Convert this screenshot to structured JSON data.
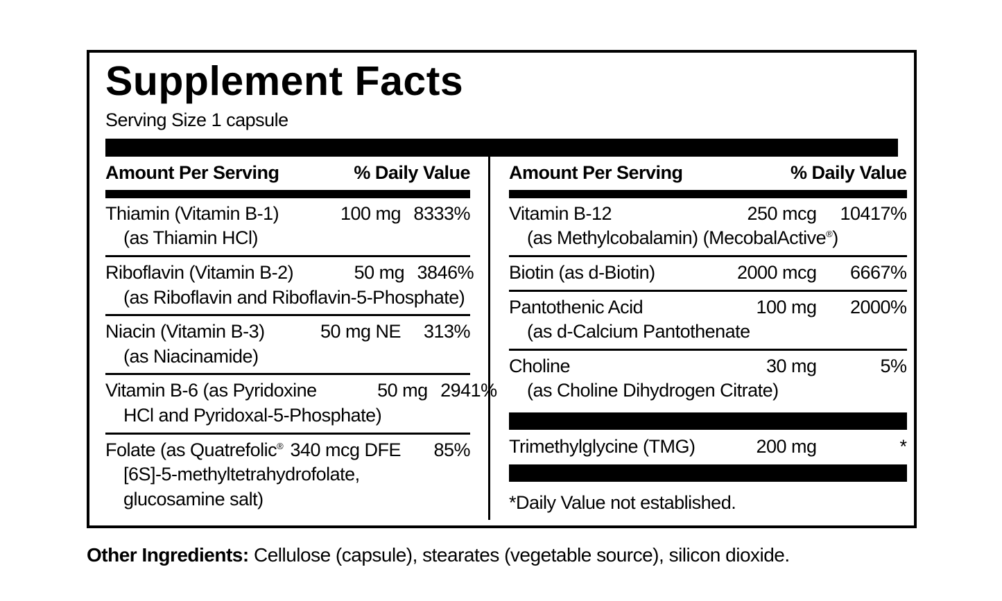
{
  "title": "Supplement Facts",
  "serving_size": "Serving Size 1 capsule",
  "header": {
    "amount": "Amount Per Serving",
    "dv": "% Daily Value"
  },
  "left_rows": [
    {
      "name": "Thiamin (Vitamin B-1)",
      "amount": "100 mg",
      "dv": "8333%",
      "sub1": "(as Thiamin HCl)"
    },
    {
      "name": "Riboflavin (Vitamin B-2)",
      "amount": "50 mg",
      "dv": "3846%",
      "sub1": "(as Riboflavin and Riboflavin-5-Phosphate)"
    },
    {
      "name": "Niacin (Vitamin B-3)",
      "amount": "50 mg NE",
      "dv": "313%",
      "sub1": "(as Niacinamide)"
    },
    {
      "name": "Vitamin B-6 (as Pyridoxine",
      "amount": "50 mg",
      "dv": "2941%",
      "sub1": "HCl and Pyridoxal-5-Phosphate)"
    },
    {
      "name": "Folate (as Quatrefolic",
      "reg": "®",
      "amount": "340 mcg DFE",
      "dv": "85%",
      "sub1": "[6S]-5-methyltetrahydrofolate,",
      "sub2": "glucosamine salt)"
    }
  ],
  "right_rows": [
    {
      "name": "Vitamin B-12",
      "amount": "250 mcg",
      "dv": "10417%",
      "sub1_pre": "(as Methylcobalamin) (MecobalActive",
      "sub1_reg": "®",
      "sub1_post": ")"
    },
    {
      "name": "Biotin (as d-Biotin)",
      "amount": "2000 mcg",
      "dv": "6667%"
    },
    {
      "name": "Pantothenic Acid",
      "amount": "100 mg",
      "dv": "2000%",
      "sub1": "(as d-Calcium Pantothenate"
    },
    {
      "name": "Choline",
      "amount": "30 mg",
      "dv": "5%",
      "sub1": "(as Choline Dihydrogen Citrate)"
    }
  ],
  "tmg_row": {
    "name": "Trimethylglycine (TMG)",
    "amount": "200 mg",
    "dv": "*"
  },
  "footnote": "*Daily Value not established.",
  "other_ingredients_label": "Other Ingredients:",
  "other_ingredients_text": " Cellulose (capsule), stearates (vegetable source), silicon dioxide.",
  "colors": {
    "ink": "#000000",
    "paper": "#ffffff"
  }
}
